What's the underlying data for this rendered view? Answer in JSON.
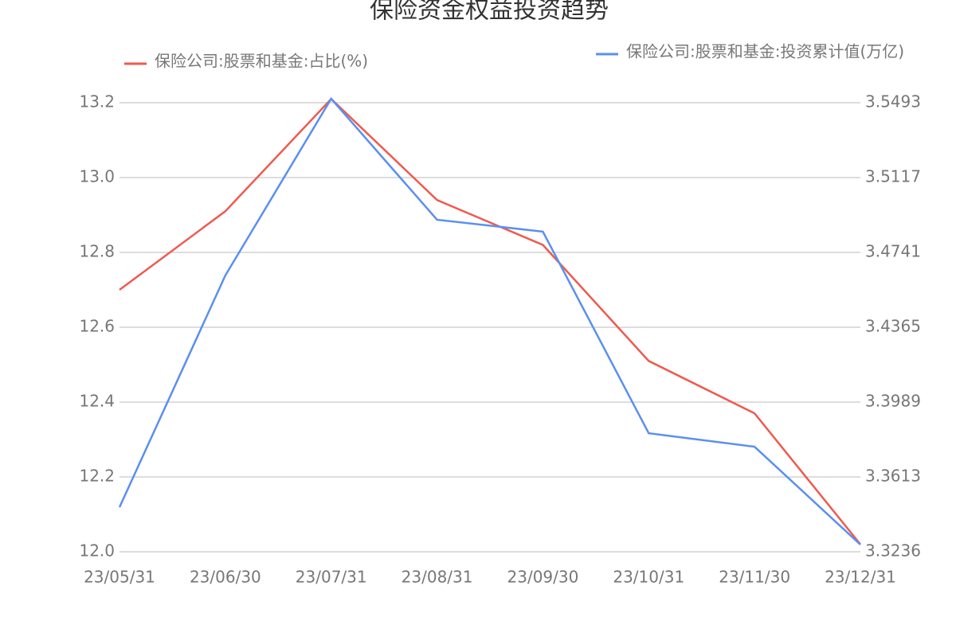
{
  "chart_data": {
    "type": "line",
    "title": "保险资金权益投资趋势",
    "x": [
      "23/05/31",
      "23/06/30",
      "23/07/31",
      "23/08/31",
      "23/09/30",
      "23/10/31",
      "23/11/30",
      "23/12/31"
    ],
    "series": [
      {
        "name": "保险公司:股票和基金:占比(%)",
        "color": "#ee5a4f",
        "values": [
          12.7,
          12.91,
          13.21,
          12.94,
          12.82,
          12.51,
          12.37,
          12.02
        ]
      },
      {
        "name": "保险公司:股票和基金:投资累计值(万亿)",
        "color": "#5b8ff0",
        "axis": "y2",
        "values": [
          3.346,
          3.4625,
          3.5513,
          3.4905,
          3.4845,
          3.3832,
          3.3764,
          3.3272
        ]
      }
    ],
    "ylim": [
      12.0,
      13.2
    ],
    "yticks": [
      {
        "value": 12.0,
        "label": "12.0"
      },
      12.2,
      12.4,
      12.6,
      12.8,
      {
        "value": 13.0,
        "label": "13.0"
      },
      13.2
    ],
    "y2lim": [
      3.3236,
      3.5493
    ],
    "y2ticks": [
      3.3236,
      3.3613,
      3.3989,
      3.4365,
      3.4741,
      3.5117,
      3.5493
    ],
    "grid": true
  }
}
